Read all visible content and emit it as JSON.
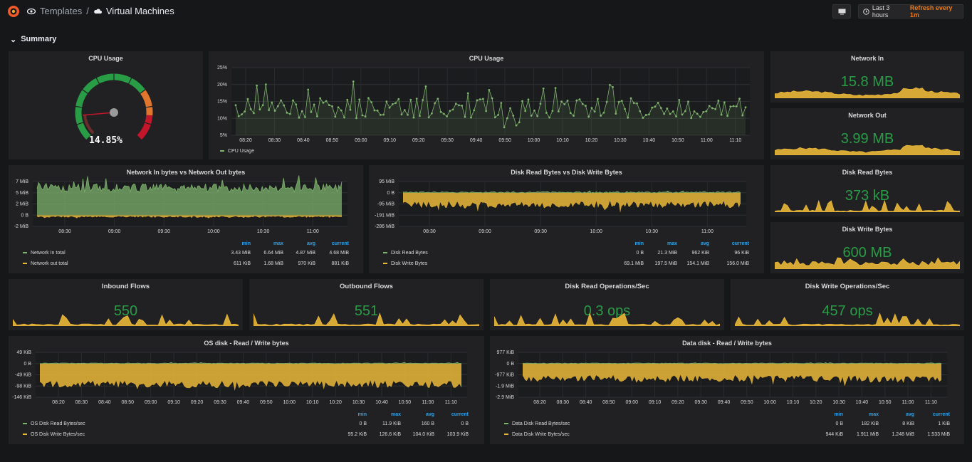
{
  "header": {
    "folder": "Templates",
    "separator": "/",
    "title": "Virtual Machines",
    "time_range": "Last 3 hours",
    "refresh": "Refresh every 1m"
  },
  "row": {
    "title": "Summary"
  },
  "colors": {
    "green": "#7eb26d",
    "yellow": "#eab839",
    "stat_green": "#299c46",
    "red": "#c4162a",
    "orange": "#e0752d",
    "blue_header": "#33a2e5"
  },
  "panels": {
    "cpu_gauge": {
      "title": "CPU Usage",
      "value": "14.85%",
      "gauge_fraction": 0.1485
    },
    "cpu_graph": {
      "title": "CPU Usage",
      "y_ticks": [
        "25%",
        "20%",
        "15%",
        "10%",
        "5%"
      ],
      "x_ticks": [
        "08:20",
        "08:30",
        "08:40",
        "08:50",
        "09:00",
        "09:10",
        "09:20",
        "09:30",
        "09:40",
        "09:50",
        "10:00",
        "10:10",
        "10:20",
        "10:30",
        "10:40",
        "10:50",
        "11:00",
        "11:10"
      ],
      "legend": "CPU Usage"
    },
    "network_in": {
      "title": "Network In",
      "value": "15.8 MB"
    },
    "network_out": {
      "title": "Network Out",
      "value": "3.99 MB"
    },
    "disk_read_bytes": {
      "title": "Disk Read Bytes",
      "value": "373 kB"
    },
    "disk_write_bytes": {
      "title": "Disk Write Bytes",
      "value": "600 MB"
    },
    "net_graph": {
      "title": "Network In bytes vs Network Out bytes",
      "y_ticks": [
        "7 MiB",
        "5 MiB",
        "2 MiB",
        "0 B",
        "-2 MiB"
      ],
      "x_ticks": [
        "08:30",
        "09:00",
        "09:30",
        "10:00",
        "10:30",
        "11:00"
      ],
      "legend_headers": [
        "min",
        "max",
        "avg",
        "current"
      ],
      "legend": [
        {
          "name": "Network In total",
          "values": [
            "3.43 MiB",
            "6.64 MiB",
            "4.87 MiB",
            "4.68 MiB"
          ],
          "color": "#7eb26d"
        },
        {
          "name": "Network out total",
          "values": [
            "611 KiB",
            "1.68 MiB",
            "970 KiB",
            "881 KiB"
          ],
          "color": "#eab839"
        }
      ]
    },
    "disk_graph": {
      "title": "Disk Read Bytes vs Disk Write Bytes",
      "y_ticks": [
        "95 MiB",
        "0 B",
        "-95 MiB",
        "-191 MiB",
        "-286 MiB"
      ],
      "x_ticks": [
        "08:30",
        "09:00",
        "09:30",
        "10:00",
        "10:30",
        "11:00"
      ],
      "legend_headers": [
        "min",
        "max",
        "avg",
        "current"
      ],
      "legend": [
        {
          "name": "Disk Read Bytes",
          "values": [
            "0 B",
            "21.3 MiB",
            "962 KiB",
            "96 KiB"
          ],
          "color": "#7eb26d"
        },
        {
          "name": "Disk Write Bytes",
          "values": [
            "69.1 MiB",
            "197.5 MiB",
            "154.1 MiB",
            "156.0 MiB"
          ],
          "color": "#eab839"
        }
      ]
    },
    "inbound_flows": {
      "title": "Inbound Flows",
      "value": "550"
    },
    "outbound_flows": {
      "title": "Outbound Flows",
      "value": "551"
    },
    "disk_read_ops": {
      "title": "Disk Read Operations/Sec",
      "value": "0.3 ops"
    },
    "disk_write_ops": {
      "title": "Disk Write Operations/Sec",
      "value": "457 ops"
    },
    "os_disk": {
      "title": "OS disk - Read / Write bytes",
      "y_ticks": [
        "49 KiB",
        "0 B",
        "-49 KiB",
        "-98 KiB",
        "-146 KiB"
      ],
      "x_ticks": [
        "08:20",
        "08:30",
        "08:40",
        "08:50",
        "09:00",
        "09:10",
        "09:20",
        "09:30",
        "09:40",
        "09:50",
        "10:00",
        "10:10",
        "10:20",
        "10:30",
        "10:40",
        "10:50",
        "11:00",
        "11:10"
      ],
      "legend_headers": [
        "min",
        "max",
        "avg",
        "current"
      ],
      "legend": [
        {
          "name": "OS Disk Read Bytes/sec",
          "values": [
            "0 B",
            "11.9 KiB",
            "160 B",
            "0 B"
          ],
          "color": "#7eb26d"
        },
        {
          "name": "OS Disk Write Bytes/sec",
          "values": [
            "95.2 KiB",
            "126.6 KiB",
            "104.0 KiB",
            "103.9 KiB"
          ],
          "color": "#eab839"
        }
      ]
    },
    "data_disk": {
      "title": "Data disk - Read / Write bytes",
      "y_ticks": [
        "977 KiB",
        "0 B",
        "-977 KiB",
        "-1.9 MiB",
        "-2.9 MiB"
      ],
      "x_ticks": [
        "08:20",
        "08:30",
        "08:40",
        "08:50",
        "09:00",
        "09:10",
        "09:20",
        "09:30",
        "09:40",
        "09:50",
        "10:00",
        "10:10",
        "10:20",
        "10:30",
        "10:40",
        "10:50",
        "11:00",
        "11:10"
      ],
      "legend_headers": [
        "min",
        "max",
        "avg",
        "current"
      ],
      "legend": [
        {
          "name": "Data Disk Read Bytes/sec",
          "values": [
            "0 B",
            "182 KiB",
            "8 KiB",
            "1 KiB"
          ],
          "color": "#7eb26d"
        },
        {
          "name": "Data Disk Write Bytes/sec",
          "values": [
            "944 KiB",
            "1.911 MiB",
            "1.248 MiB",
            "1.533 MiB"
          ],
          "color": "#eab839"
        }
      ]
    }
  }
}
